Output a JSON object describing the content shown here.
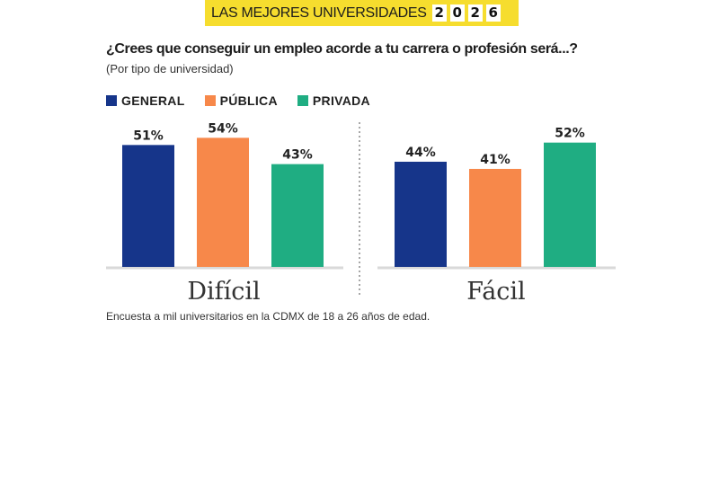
{
  "banner": {
    "title": "LAS MEJORES UNIVERSIDADES",
    "year_digits": [
      "2",
      "0",
      "2",
      "6"
    ]
  },
  "chart_data": {
    "type": "bar",
    "title": "¿Crees que conseguir un empleo acorde a tu carrera o profesión será...?",
    "subtitle": "(Por tipo de universidad)",
    "categories": [
      "Difícil",
      "Fácil"
    ],
    "series": [
      {
        "name": "GENERAL",
        "color": "#16358a",
        "values": [
          51,
          44
        ],
        "labels": [
          "51%",
          "44%"
        ]
      },
      {
        "name": "PÚBLICA",
        "color": "#f7884a",
        "values": [
          54,
          41
        ],
        "labels": [
          "54%",
          "41%"
        ]
      },
      {
        "name": "PRIVADA",
        "color": "#1fad82",
        "values": [
          43,
          52
        ],
        "labels": [
          "43%",
          "52%"
        ]
      }
    ],
    "ylim": [
      0,
      100
    ],
    "xlabel": "",
    "ylabel": "",
    "grid": false,
    "legend": "top-left",
    "footnote": "Encuesta a mil universitarios en la CDMX de 18 a 26 años de edad."
  }
}
